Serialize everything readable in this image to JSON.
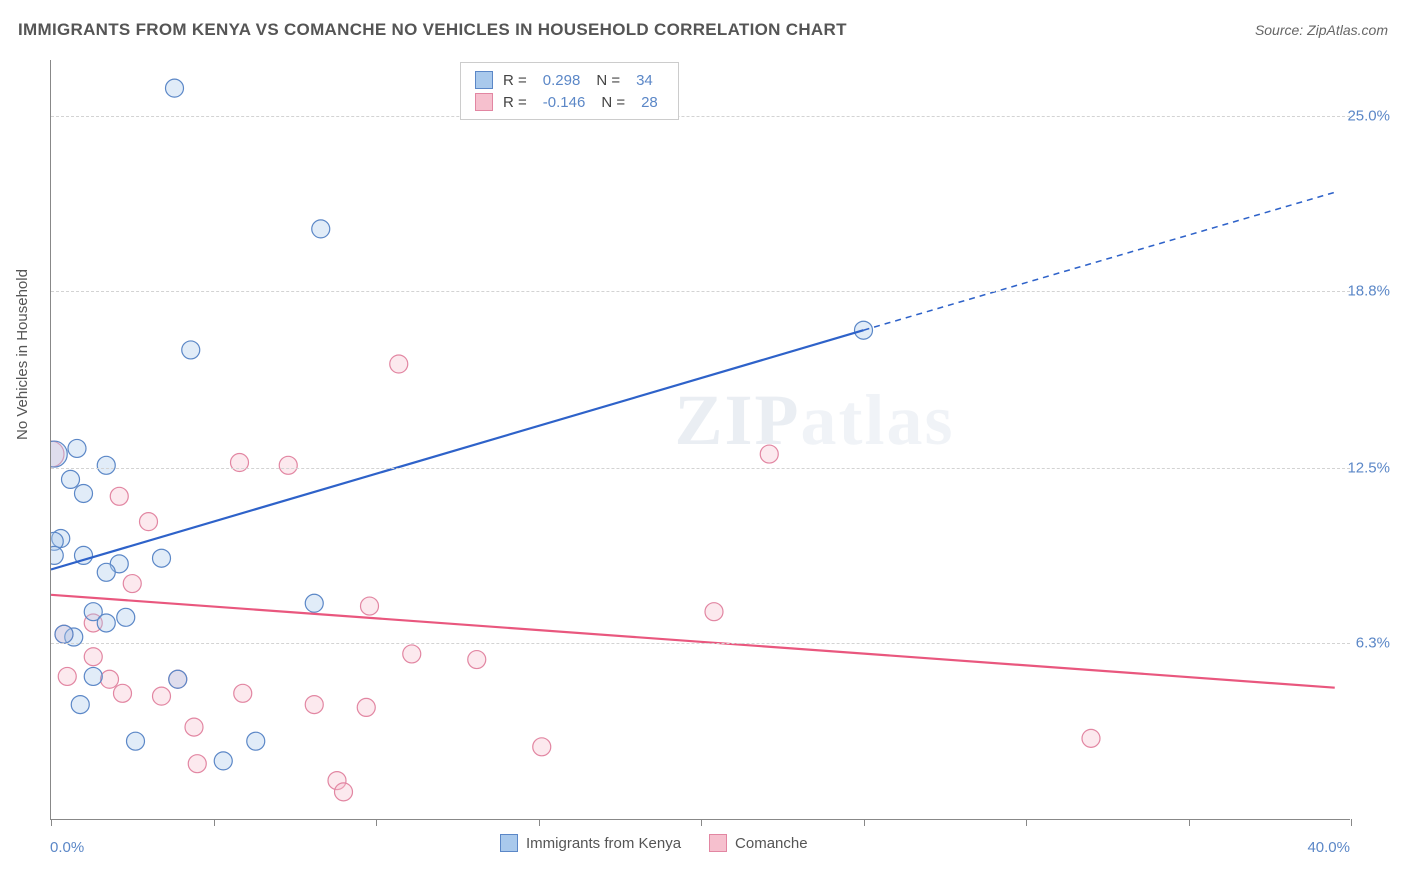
{
  "title": "IMMIGRANTS FROM KENYA VS COMANCHE NO VEHICLES IN HOUSEHOLD CORRELATION CHART",
  "source_label": "Source: ",
  "source_name": "ZipAtlas.com",
  "y_axis_label": "No Vehicles in Household",
  "watermark_bold": "ZIP",
  "watermark_light": "atlas",
  "chart": {
    "type": "scatter",
    "xlim": [
      0.0,
      40.0
    ],
    "ylim": [
      0.0,
      27.0
    ],
    "x_min_label": "0.0%",
    "x_max_label": "40.0%",
    "x_tick_positions": [
      0,
      5,
      10,
      15,
      20,
      25,
      30,
      35,
      40
    ],
    "y_ticks": [
      {
        "value": 6.3,
        "label": "6.3%"
      },
      {
        "value": 12.5,
        "label": "12.5%"
      },
      {
        "value": 18.8,
        "label": "18.8%"
      },
      {
        "value": 25.0,
        "label": "25.0%"
      }
    ],
    "background_color": "#ffffff",
    "grid_color": "#d3d3d3",
    "marker_radius": 9,
    "marker_stroke_width": 1.2,
    "marker_fill_opacity": 0.35,
    "series": [
      {
        "name": "Immigrants from Kenya",
        "label": "Immigrants from Kenya",
        "color_fill": "#a9c9ec",
        "color_stroke": "#5b87c7",
        "trend_color": "#2e62c9",
        "R": "0.298",
        "N": "34",
        "trend": {
          "x1": 0.0,
          "y1": 8.9,
          "x2_solid": 25.0,
          "y2_solid": 17.4,
          "x2_dash": 39.5,
          "y2_dash": 22.3
        },
        "trend_width": 2.2,
        "points": [
          {
            "x": 0.1,
            "y": 13.0,
            "r": 13
          },
          {
            "x": 3.8,
            "y": 26.0
          },
          {
            "x": 0.8,
            "y": 13.2
          },
          {
            "x": 1.7,
            "y": 12.6
          },
          {
            "x": 0.6,
            "y": 12.1
          },
          {
            "x": 1.0,
            "y": 11.6
          },
          {
            "x": 0.3,
            "y": 10.0
          },
          {
            "x": 0.1,
            "y": 9.9
          },
          {
            "x": 0.1,
            "y": 9.4
          },
          {
            "x": 2.1,
            "y": 9.1
          },
          {
            "x": 1.0,
            "y": 9.4
          },
          {
            "x": 3.4,
            "y": 9.3
          },
          {
            "x": 1.7,
            "y": 8.8
          },
          {
            "x": 1.3,
            "y": 7.4
          },
          {
            "x": 2.3,
            "y": 7.2
          },
          {
            "x": 1.7,
            "y": 7.0
          },
          {
            "x": 0.7,
            "y": 6.5
          },
          {
            "x": 0.4,
            "y": 6.6
          },
          {
            "x": 1.3,
            "y": 5.1
          },
          {
            "x": 3.9,
            "y": 5.0
          },
          {
            "x": 0.9,
            "y": 4.1
          },
          {
            "x": 2.6,
            "y": 2.8
          },
          {
            "x": 6.3,
            "y": 2.8
          },
          {
            "x": 5.3,
            "y": 2.1
          },
          {
            "x": 4.3,
            "y": 16.7
          },
          {
            "x": 8.1,
            "y": 7.7
          },
          {
            "x": 8.3,
            "y": 21.0
          },
          {
            "x": 25.0,
            "y": 17.4
          }
        ]
      },
      {
        "name": "Comanche",
        "label": "Comanche",
        "color_fill": "#f6c0ce",
        "color_stroke": "#e286a2",
        "trend_color": "#e9577e",
        "R": "-0.146",
        "N": "28",
        "trend": {
          "x1": 0.0,
          "y1": 8.0,
          "x2_solid": 39.5,
          "y2_solid": 4.7,
          "x2_dash": 39.5,
          "y2_dash": 4.7
        },
        "trend_width": 2.2,
        "points": [
          {
            "x": 0.0,
            "y": 13.0,
            "r": 13
          },
          {
            "x": 2.1,
            "y": 11.5
          },
          {
            "x": 3.0,
            "y": 10.6
          },
          {
            "x": 2.5,
            "y": 8.4
          },
          {
            "x": 1.3,
            "y": 7.0
          },
          {
            "x": 0.4,
            "y": 6.6
          },
          {
            "x": 1.3,
            "y": 5.8
          },
          {
            "x": 0.5,
            "y": 5.1
          },
          {
            "x": 1.8,
            "y": 5.0
          },
          {
            "x": 2.2,
            "y": 4.5
          },
          {
            "x": 3.4,
            "y": 4.4
          },
          {
            "x": 3.9,
            "y": 5.0
          },
          {
            "x": 4.4,
            "y": 3.3
          },
          {
            "x": 4.5,
            "y": 2.0
          },
          {
            "x": 5.9,
            "y": 4.5
          },
          {
            "x": 5.8,
            "y": 12.7
          },
          {
            "x": 7.3,
            "y": 12.6
          },
          {
            "x": 8.1,
            "y": 4.1
          },
          {
            "x": 8.8,
            "y": 1.4
          },
          {
            "x": 9.0,
            "y": 1.0
          },
          {
            "x": 9.8,
            "y": 7.6
          },
          {
            "x": 9.7,
            "y": 4.0
          },
          {
            "x": 10.7,
            "y": 16.2
          },
          {
            "x": 11.1,
            "y": 5.9
          },
          {
            "x": 13.1,
            "y": 5.7
          },
          {
            "x": 15.1,
            "y": 2.6
          },
          {
            "x": 20.4,
            "y": 7.4
          },
          {
            "x": 22.1,
            "y": 13.0
          },
          {
            "x": 32.0,
            "y": 2.9
          }
        ]
      }
    ]
  },
  "legend": {
    "R_label": "R =",
    "N_label": "N ="
  }
}
